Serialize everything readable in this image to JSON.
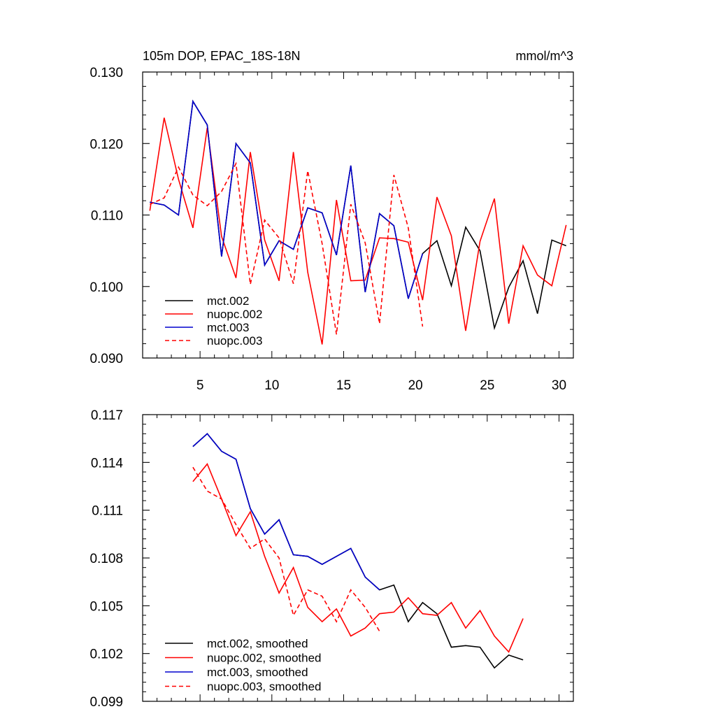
{
  "chart_data": [
    {
      "type": "line",
      "title": "105m DOP, EPAC_18S-18N",
      "units": "mmol/m^3",
      "xlim": [
        1,
        31
      ],
      "ylim": [
        0.09,
        0.13
      ],
      "xticks": [
        5,
        10,
        15,
        20,
        25,
        30
      ],
      "yticks": [
        "0.090",
        "0.100",
        "0.110",
        "0.120",
        "0.130"
      ],
      "legend_position": "bottom-left",
      "series": [
        {
          "name": "mct.002",
          "color": "#000000",
          "dash": "",
          "x": [
            1.5,
            2.5,
            3.5,
            4.5,
            5.5,
            6.5,
            7.5,
            8.5,
            9.5,
            10.5,
            11.5,
            12.5,
            13.5,
            14.5,
            15.5,
            16.5,
            17.5,
            18.5,
            19.5,
            20.5,
            21.5,
            22.5,
            23.5,
            24.5,
            25.5,
            26.5,
            27.5,
            28.5,
            29.5,
            30.5
          ],
          "values": [
            0.1118,
            0.1114,
            0.11,
            0.1259,
            0.1226,
            0.1042,
            0.12,
            0.1173,
            0.103,
            0.1064,
            0.1052,
            0.111,
            0.1103,
            0.1044,
            0.1169,
            0.0992,
            0.1102,
            0.1085,
            0.0983,
            0.1046,
            0.1064,
            0.1001,
            0.1083,
            0.105,
            0.0942,
            0.0999,
            0.1036,
            0.0962,
            0.1065,
            0.1057
          ]
        },
        {
          "name": "nuopc.002",
          "color": "#ff0000",
          "dash": "",
          "x": [
            1.5,
            2.5,
            3.5,
            4.5,
            5.5,
            6.5,
            7.5,
            8.5,
            9.5,
            10.5,
            11.5,
            12.5,
            13.5,
            14.5,
            15.5,
            16.5,
            17.5,
            18.5,
            19.5,
            20.5,
            21.5,
            22.5,
            23.5,
            24.5,
            25.5,
            26.5,
            27.5,
            28.5,
            29.5,
            30.5
          ],
          "values": [
            0.1106,
            0.1236,
            0.115,
            0.1082,
            0.1222,
            0.107,
            0.1012,
            0.1188,
            0.1065,
            0.1008,
            0.1188,
            0.102,
            0.0919,
            0.1121,
            0.1008,
            0.1009,
            0.1068,
            0.1067,
            0.1062,
            0.0981,
            0.1125,
            0.1071,
            0.0938,
            0.1063,
            0.1123,
            0.0948,
            0.1057,
            0.1016,
            0.1001,
            0.1086
          ]
        },
        {
          "name": "mct.003",
          "color": "#0000cd",
          "dash": "",
          "x": [
            1.5,
            2.5,
            3.5,
            4.5,
            5.5,
            6.5,
            7.5,
            8.5,
            9.5,
            10.5,
            11.5,
            12.5,
            13.5,
            14.5,
            15.5,
            16.5,
            17.5,
            18.5,
            19.5,
            20.5
          ],
          "values": [
            0.1118,
            0.1114,
            0.11,
            0.1259,
            0.1226,
            0.1042,
            0.12,
            0.1173,
            0.103,
            0.1064,
            0.1052,
            0.111,
            0.1103,
            0.1044,
            0.1169,
            0.0992,
            0.1102,
            0.1085,
            0.0983,
            0.1046
          ]
        },
        {
          "name": "nuopc.003",
          "color": "#ff0000",
          "dash": "6,4",
          "x": [
            1.5,
            2.5,
            3.5,
            4.5,
            5.5,
            6.5,
            7.5,
            8.5,
            9.5,
            10.5,
            11.5,
            12.5,
            13.5,
            14.5,
            15.5,
            16.5,
            17.5,
            18.5,
            19.5,
            20.5
          ],
          "values": [
            0.1115,
            0.1124,
            0.1167,
            0.1128,
            0.1113,
            0.1133,
            0.1172,
            0.1003,
            0.1093,
            0.1068,
            0.1004,
            0.1162,
            0.106,
            0.0933,
            0.1115,
            0.1061,
            0.0948,
            0.1156,
            0.1082,
            0.0944
          ]
        }
      ]
    },
    {
      "type": "line",
      "title": "",
      "xlim": [
        1,
        31
      ],
      "ylim": [
        0.099,
        0.117
      ],
      "xticks": [
        5,
        10,
        15,
        20,
        25,
        30
      ],
      "yticks": [
        "0.099",
        "0.102",
        "0.105",
        "0.108",
        "0.111",
        "0.114",
        "0.117"
      ],
      "legend_position": "bottom-left",
      "series": [
        {
          "name": "mct.002, smoothed",
          "color": "#000000",
          "dash": "",
          "x": [
            4.5,
            5.5,
            6.5,
            7.5,
            8.5,
            9.5,
            10.5,
            11.5,
            12.5,
            13.5,
            14.5,
            15.5,
            16.5,
            17.5,
            18.5,
            19.5,
            20.5,
            21.5,
            22.5,
            23.5,
            24.5,
            25.5,
            26.5,
            27.5
          ],
          "values": [
            0.115,
            0.1158,
            0.1147,
            0.1142,
            0.1111,
            0.1095,
            0.1104,
            0.1082,
            0.1081,
            0.1076,
            0.1081,
            0.1086,
            0.1068,
            0.106,
            0.1063,
            0.104,
            0.1052,
            0.1045,
            0.1024,
            0.1025,
            0.1024,
            0.1011,
            0.1019,
            0.1016
          ]
        },
        {
          "name": "nuopc.002, smoothed",
          "color": "#ff0000",
          "dash": "",
          "x": [
            4.5,
            5.5,
            6.5,
            7.5,
            8.5,
            9.5,
            10.5,
            11.5,
            12.5,
            13.5,
            14.5,
            15.5,
            16.5,
            17.5,
            18.5,
            19.5,
            20.5,
            21.5,
            22.5,
            23.5,
            24.5,
            25.5,
            26.5,
            27.5
          ],
          "values": [
            0.1128,
            0.1139,
            0.1117,
            0.1094,
            0.1109,
            0.1081,
            0.1058,
            0.1074,
            0.1049,
            0.104,
            0.1048,
            0.1031,
            0.1036,
            0.1045,
            0.1046,
            0.1055,
            0.1045,
            0.1044,
            0.1052,
            0.1036,
            0.1047,
            0.1031,
            0.1021,
            0.1042
          ]
        },
        {
          "name": "mct.003, smoothed",
          "color": "#0000cd",
          "dash": "",
          "x": [
            4.5,
            5.5,
            6.5,
            7.5,
            8.5,
            9.5,
            10.5,
            11.5,
            12.5,
            13.5,
            14.5,
            15.5,
            16.5,
            17.5
          ],
          "values": [
            0.115,
            0.1158,
            0.1147,
            0.1142,
            0.1111,
            0.1095,
            0.1104,
            0.1082,
            0.1081,
            0.1076,
            0.1081,
            0.1086,
            0.1068,
            0.106
          ]
        },
        {
          "name": "nuopc.003, smoothed",
          "color": "#ff0000",
          "dash": "6,4",
          "x": [
            4.5,
            5.5,
            6.5,
            7.5,
            8.5,
            9.5,
            10.5,
            11.5,
            12.5,
            13.5,
            14.5,
            15.5,
            16.5,
            17.5
          ],
          "values": [
            0.1137,
            0.1122,
            0.1117,
            0.1101,
            0.1086,
            0.1092,
            0.108,
            0.1044,
            0.106,
            0.1056,
            0.104,
            0.106,
            0.1049,
            0.1034
          ]
        }
      ]
    }
  ]
}
